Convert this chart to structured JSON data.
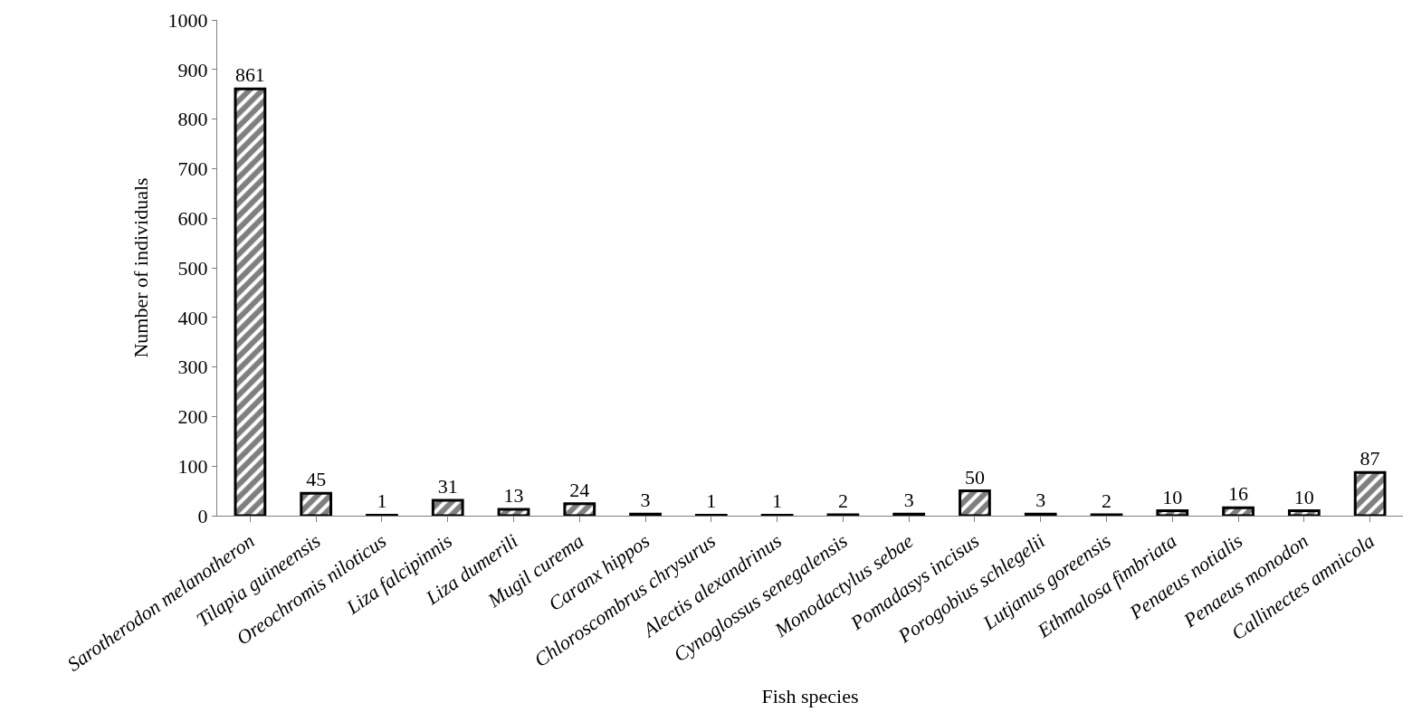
{
  "chart_data": {
    "type": "bar",
    "xlabel": "Fish species",
    "ylabel": "Number of individuals",
    "categories": [
      "Sarotherodon melanotheron",
      "Tilapia guineensis",
      "Oreochromis niloticus",
      "Liza falcipinnis",
      "Liza dumerili",
      "Mugil curema",
      "Caranx hippos",
      "Chloroscombrus chrysurus",
      "Alectis alexandrinus",
      "Cynoglossus senegalensis",
      "Monodactylus sebae",
      "Pomadasys incisus",
      "Porogobius schlegelii",
      "Lutjanus goreensis",
      "Ethmalosa fimbriata",
      "Penaeus notialis",
      "Penaeus monodon",
      "Callinectes amnicola"
    ],
    "values": [
      861,
      45,
      1,
      31,
      13,
      24,
      3,
      1,
      1,
      2,
      3,
      50,
      3,
      2,
      10,
      16,
      10,
      87
    ],
    "color": "#000000",
    "ylim": [
      0,
      1000
    ],
    "yticks": [
      0,
      100,
      200,
      300,
      400,
      500,
      600,
      700,
      800,
      900,
      1000
    ],
    "data_labels": true
  }
}
